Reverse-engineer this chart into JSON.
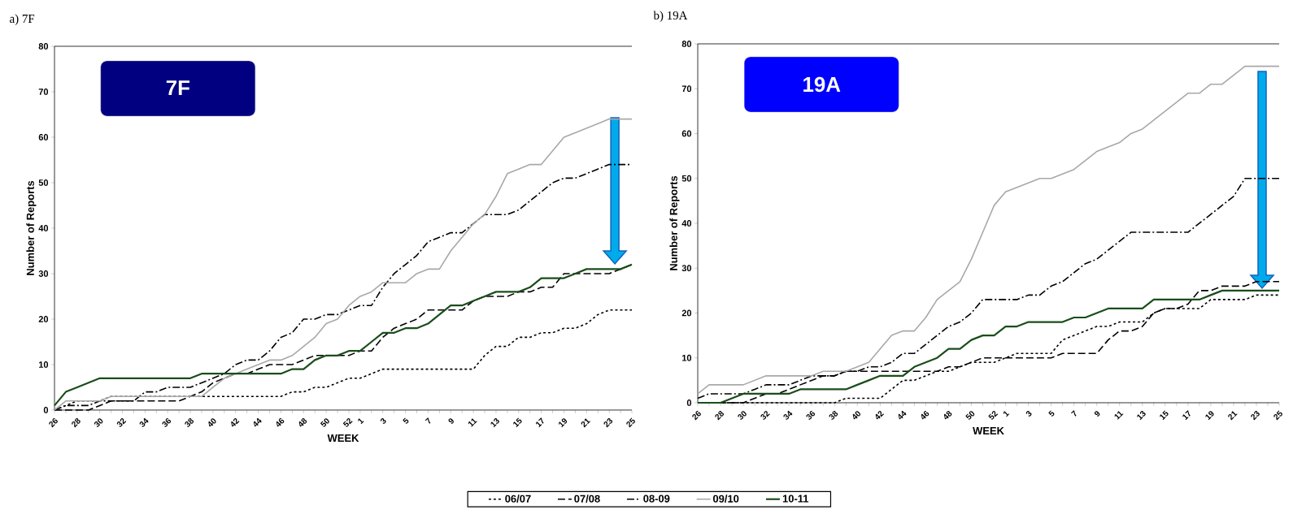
{
  "chart_data": [
    {
      "type": "line",
      "title": "a) 7F",
      "xlabel": "WEEK",
      "ylabel": "Number of Reports",
      "annotations": [
        "7F"
      ],
      "categories": [
        "26",
        null,
        "28",
        null,
        "30",
        null,
        "32",
        null,
        "34",
        null,
        "36",
        null,
        "38",
        null,
        "40",
        null,
        "42",
        null,
        "44",
        null,
        "46",
        null,
        "48",
        null,
        "50",
        null,
        "52",
        "1",
        null,
        "3",
        null,
        "5",
        null,
        "7",
        null,
        "9",
        null,
        "11",
        null,
        "13",
        null,
        "15",
        null,
        "17",
        null,
        "19",
        null,
        "21",
        null,
        "23",
        null,
        "25"
      ],
      "ylim": [
        0,
        80
      ],
      "yticks": [
        0,
        10,
        20,
        30,
        40,
        50,
        60,
        70,
        80
      ],
      "grid": false,
      "legend": "bottom",
      "marker": "none",
      "series": [
        {
          "name": "06/07",
          "color": "#000000",
          "line_style": "dotted",
          "values": [
            0,
            1,
            2,
            2,
            2,
            3,
            3,
            3,
            3,
            3,
            3,
            3,
            3,
            3,
            3,
            3,
            3,
            3,
            3,
            3,
            3,
            4,
            4,
            5,
            5,
            6,
            7,
            7,
            8,
            9,
            9,
            9,
            9,
            9,
            9,
            9,
            9,
            9,
            12,
            14,
            14,
            16,
            16,
            17,
            17,
            18,
            18,
            19,
            21,
            22,
            22,
            22
          ]
        },
        {
          "name": "07/08",
          "color": "#000000",
          "line_style": "dashed",
          "values": [
            0,
            0,
            0,
            0,
            1,
            2,
            2,
            2,
            2,
            2,
            2,
            2,
            3,
            4,
            6,
            7,
            8,
            8,
            9,
            10,
            10,
            10,
            11,
            12,
            12,
            12,
            12,
            13,
            13,
            16,
            18,
            19,
            20,
            22,
            22,
            22,
            22,
            24,
            25,
            25,
            25,
            26,
            26,
            27,
            27,
            30,
            30,
            30,
            30,
            30,
            31,
            32
          ]
        },
        {
          "name": "08-09",
          "color": "#000000",
          "line_style": "dashdot",
          "values": [
            0,
            1,
            1,
            1,
            2,
            2,
            2,
            2,
            4,
            4,
            5,
            5,
            5,
            6,
            7,
            8,
            10,
            11,
            11,
            13,
            16,
            17,
            20,
            20,
            21,
            21,
            22,
            23,
            23,
            27,
            30,
            32,
            34,
            37,
            38,
            39,
            39,
            41,
            43,
            43,
            43,
            44,
            46,
            48,
            50,
            51,
            51,
            52,
            53,
            54,
            54,
            54
          ]
        },
        {
          "name": "09/10",
          "color": "#a8a8a8",
          "line_style": "solid",
          "values": [
            0,
            2,
            2,
            2,
            2,
            3,
            3,
            3,
            3,
            3,
            3,
            3,
            3,
            3,
            5,
            7,
            8,
            9,
            10,
            11,
            11,
            12,
            14,
            16,
            19,
            20,
            23,
            25,
            26,
            28,
            28,
            28,
            30,
            31,
            31,
            35,
            38,
            41,
            43,
            47,
            52,
            53,
            54,
            54,
            57,
            60,
            61,
            62,
            63,
            64,
            64,
            64
          ]
        },
        {
          "name": "10-11",
          "color": "#1a4d1a",
          "line_style": "solid",
          "values": [
            1,
            4,
            5,
            6,
            7,
            7,
            7,
            7,
            7,
            7,
            7,
            7,
            7,
            8,
            8,
            8,
            8,
            8,
            8,
            8,
            8,
            9,
            9,
            11,
            12,
            12,
            13,
            13,
            15,
            17,
            17,
            18,
            18,
            19,
            21,
            23,
            23,
            24,
            25,
            26,
            26,
            26,
            27,
            29,
            29,
            29,
            30,
            31,
            31,
            31,
            31,
            32
          ]
        }
      ]
    },
    {
      "type": "line",
      "title": "b) 19A",
      "xlabel": "WEEK",
      "ylabel": "Number of Reports",
      "annotations": [
        "19A"
      ],
      "categories": [
        "26",
        null,
        "28",
        null,
        "30",
        null,
        "32",
        null,
        "34",
        null,
        "36",
        null,
        "38",
        null,
        "40",
        null,
        "42",
        null,
        "44",
        null,
        "46",
        null,
        "48",
        null,
        "50",
        null,
        "52",
        "1",
        null,
        "3",
        null,
        "5",
        null,
        "7",
        null,
        "9",
        null,
        "11",
        null,
        "13",
        null,
        "15",
        null,
        "17",
        null,
        "19",
        null,
        "21",
        null,
        "23",
        null,
        "25"
      ],
      "ylim": [
        0,
        80
      ],
      "yticks": [
        0,
        10,
        20,
        30,
        40,
        50,
        60,
        70,
        80
      ],
      "grid": false,
      "marker": "none",
      "series": [
        {
          "color": "#000000",
          "line_style": "dotted",
          "values": [
            0,
            0,
            0,
            0,
            0,
            0,
            0,
            0,
            0,
            0,
            0,
            0,
            0,
            1,
            1,
            1,
            1,
            3,
            5,
            5,
            6,
            7,
            7,
            8,
            9,
            9,
            9,
            10,
            11,
            11,
            11,
            11,
            14,
            15,
            16,
            17,
            17,
            18,
            18,
            18,
            20,
            21,
            21,
            21,
            21,
            23,
            23,
            23,
            23,
            24,
            24,
            24
          ]
        },
        {
          "color": "#000000",
          "line_style": "dashed",
          "values": [
            0,
            0,
            0,
            0,
            0,
            1,
            2,
            2,
            3,
            4,
            5,
            6,
            6,
            7,
            7,
            7,
            7,
            7,
            7,
            7,
            7,
            7,
            8,
            8,
            9,
            10,
            10,
            10,
            10,
            10,
            10,
            10,
            11,
            11,
            11,
            11,
            14,
            16,
            16,
            17,
            20,
            21,
            21,
            22,
            25,
            25,
            26,
            26,
            26,
            27,
            27,
            27
          ]
        },
        {
          "color": "#000000",
          "line_style": "dashdot",
          "values": [
            1,
            2,
            2,
            2,
            2,
            3,
            4,
            4,
            4,
            5,
            6,
            6,
            6,
            7,
            7,
            8,
            8,
            9,
            11,
            11,
            13,
            15,
            17,
            18,
            20,
            23,
            23,
            23,
            23,
            24,
            24,
            26,
            27,
            29,
            31,
            32,
            34,
            36,
            38,
            38,
            38,
            38,
            38,
            38,
            40,
            42,
            44,
            46,
            50,
            50,
            50,
            50
          ]
        },
        {
          "color": "#a8a8a8",
          "line_style": "solid",
          "values": [
            2,
            4,
            4,
            4,
            4,
            5,
            6,
            6,
            6,
            6,
            6,
            7,
            7,
            7,
            8,
            9,
            12,
            15,
            16,
            16,
            19,
            23,
            25,
            27,
            32,
            38,
            44,
            47,
            48,
            49,
            50,
            50,
            51,
            52,
            54,
            56,
            57,
            58,
            60,
            61,
            63,
            65,
            67,
            69,
            69,
            71,
            71,
            73,
            75,
            75,
            75,
            75
          ]
        },
        {
          "color": "#1a4d1a",
          "line_style": "solid",
          "values": [
            0,
            0,
            0,
            1,
            2,
            2,
            2,
            2,
            2,
            3,
            3,
            3,
            3,
            3,
            4,
            5,
            6,
            6,
            6,
            8,
            9,
            10,
            12,
            12,
            14,
            15,
            15,
            17,
            17,
            18,
            18,
            18,
            18,
            19,
            19,
            20,
            21,
            21,
            21,
            21,
            23,
            23,
            23,
            23,
            23,
            24,
            25,
            25,
            25,
            25,
            25,
            25
          ]
        }
      ]
    }
  ]
}
